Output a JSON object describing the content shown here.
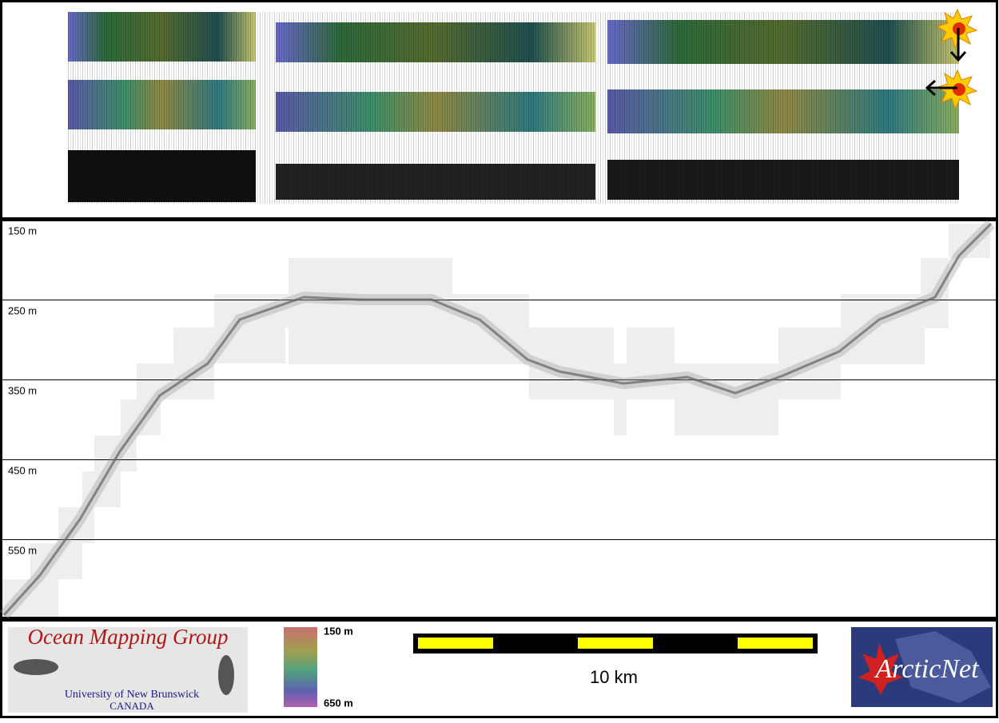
{
  "depth_labels": [
    "150 m",
    "250 m",
    "350 m",
    "450 m",
    "550 m"
  ],
  "color_bar": {
    "top": "150 m",
    "bottom": "650 m"
  },
  "scale_bar": {
    "label": "10 km"
  },
  "logos": {
    "left": {
      "title": "Ocean Mapping Group",
      "line1": "University of New Brunswick",
      "line2": "CANADA"
    },
    "right": {
      "title": "ArcticNet"
    }
  }
}
